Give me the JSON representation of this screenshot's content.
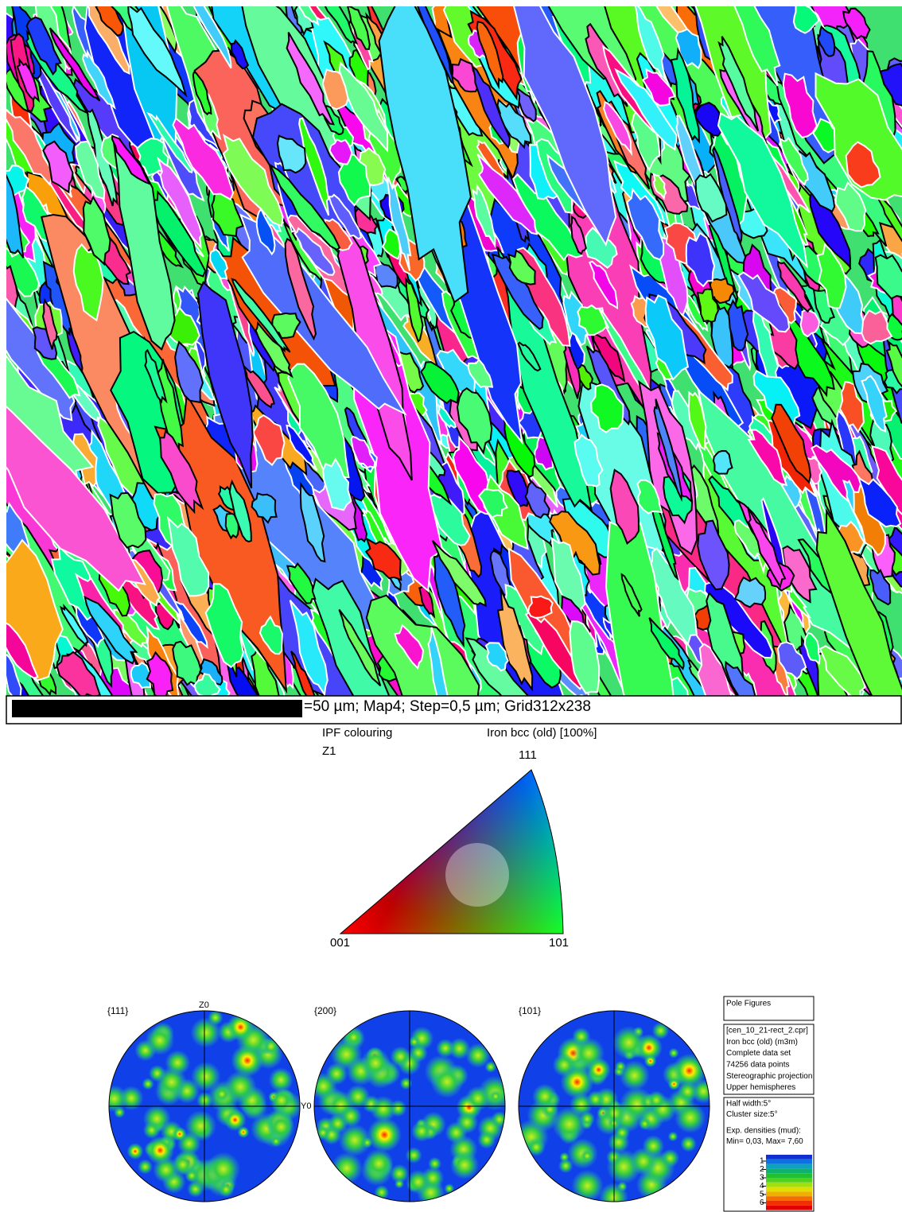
{
  "scale_bar": {
    "text": "=50 µm; Map4; Step=0,5 µm; Grid312x238"
  },
  "ipf_key": {
    "title": "IPF colouring",
    "phase": "Iron bcc (old) [100%]",
    "direction": "Z1",
    "corners": {
      "top": "111",
      "left": "001",
      "right": "101"
    }
  },
  "pole_figures": {
    "figures": [
      {
        "label": "{111}"
      },
      {
        "label": "{200}"
      },
      {
        "label": "{101}"
      }
    ],
    "axis_labels": {
      "top": "Z0",
      "right": "Y0"
    }
  },
  "info_panel": {
    "title": "Pole Figures",
    "details": [
      "[cen_10_21-rect_2.cpr]",
      "Iron bcc (old) (m3m)",
      "Complete data set",
      "74256 data points",
      "Stereographic projection",
      "Upper hemispheres"
    ],
    "settings": [
      "Half width:5°",
      "Cluster size:5°",
      "Exp. densities (mud):",
      "Min= 0,03, Max= 7,60"
    ],
    "density_levels": [
      1,
      2,
      3,
      4,
      5,
      6
    ]
  }
}
